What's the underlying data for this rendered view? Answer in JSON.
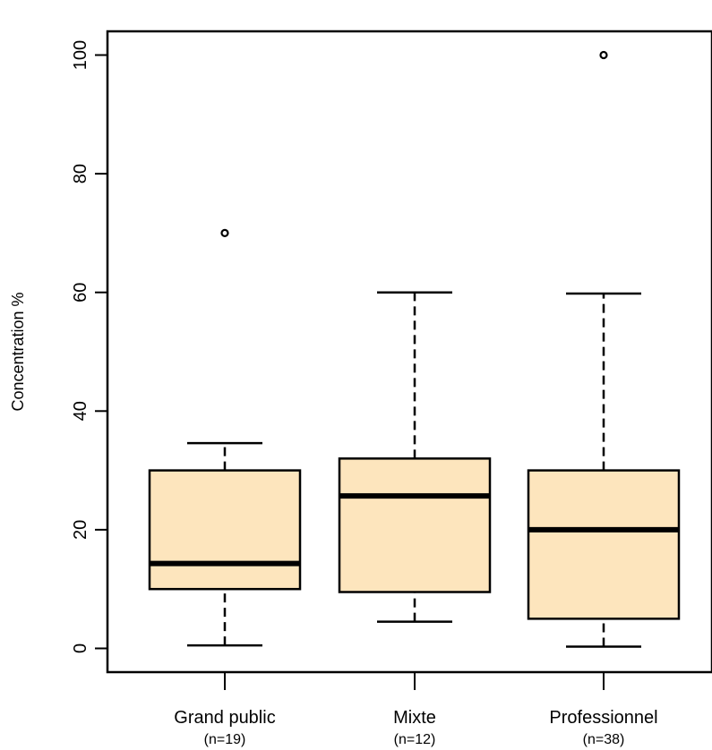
{
  "chart_data": {
    "type": "boxplot",
    "title": "",
    "xlabel": "",
    "ylabel": "Concentration %",
    "ylim": [
      -4,
      104
    ],
    "yticks": [
      0,
      20,
      40,
      60,
      80,
      100
    ],
    "grid": false,
    "box_fill": "#FDE5BD",
    "categories": [
      {
        "name": "Grand public",
        "n_label": "(n=19)",
        "whisker_low": 0.5,
        "q1": 10,
        "median": 14.3,
        "q3": 30,
        "whisker_high": 34.6,
        "outliers": [
          70
        ]
      },
      {
        "name": "Mixte",
        "n_label": "(n=12)",
        "whisker_low": 4.5,
        "q1": 9.5,
        "median": 25.7,
        "q3": 32,
        "whisker_high": 60,
        "outliers": []
      },
      {
        "name": "Professionnel",
        "n_label": "(n=38)",
        "whisker_low": 0.3,
        "q1": 5,
        "median": 20,
        "q3": 30,
        "whisker_high": 59.8,
        "outliers": [
          100
        ]
      }
    ]
  }
}
